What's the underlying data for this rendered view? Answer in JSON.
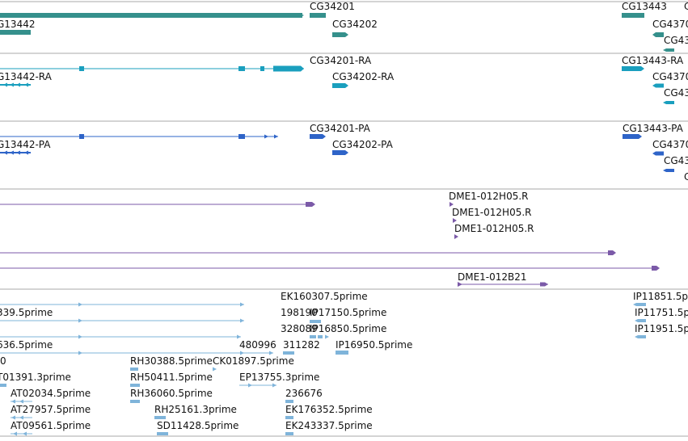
{
  "colors": {
    "gene": "#35908c",
    "transcript": "#1a9fbe",
    "protein": "#2e64c8",
    "est": "#7b5aa8",
    "cdna": "#7fb4da",
    "divider": "#aaaaaa",
    "text": "#111111"
  },
  "tracks": {
    "genes": {
      "labels": [
        "CG34201",
        "G13442",
        "CG34202",
        "CG13443",
        "CG4370",
        "CG43"
      ]
    },
    "transcripts": {
      "labels": [
        "CG34201-RA",
        "G13442-RA",
        "CG34202-RA",
        "CG13443-RA",
        "CG4370",
        "CG43"
      ]
    },
    "proteins": {
      "labels": [
        "CG34201-PA",
        "G13442-PA",
        "CG34202-PA",
        "CG13443-PA",
        "CG4370",
        "CG43"
      ]
    },
    "est": {
      "labels": [
        "DME1-012H05.R",
        "DME1-012H05.R",
        "DME1-012H05.R",
        "DME1-012B21"
      ]
    },
    "cdna": {
      "labels": [
        "EK160307.5prime",
        "339.5prime",
        "198190",
        "IP17150.5prime",
        "328089",
        "IP16850.5prime",
        "636.5prime",
        "480996",
        "311282",
        "IP16950.5prime",
        "0",
        "RH30388.5prime",
        "CK01897.5prime",
        "T01391.3prime",
        "RH50411.5prime",
        "EP13755.3prime",
        "AT02034.5prime",
        "RH36060.5prime",
        "236676",
        "AT27957.5prime",
        "RH25161.3prime",
        "EK176352.5prime",
        "AT09561.5prime",
        "SD11428.5prime",
        "EK243337.5prime",
        "IP11851.5p",
        "IP11751.5p",
        "IP11951.5p"
      ]
    }
  }
}
